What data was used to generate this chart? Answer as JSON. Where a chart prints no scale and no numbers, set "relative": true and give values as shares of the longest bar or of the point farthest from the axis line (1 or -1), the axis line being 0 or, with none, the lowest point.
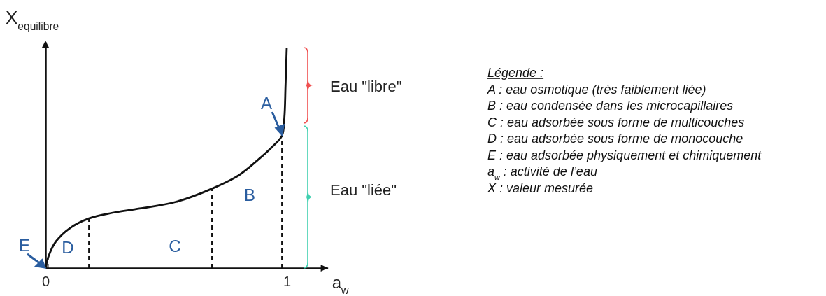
{
  "chart_data": {
    "type": "line",
    "relative": true,
    "xlabel": "a$_{w}$",
    "ylabel": "X$_{equilibre}$",
    "xlim": [
      0,
      1.17
    ],
    "xticks": [
      0,
      1
    ],
    "series": [
      {
        "color": "#111111",
        "line_style": "solid",
        "x": [
          0,
          0.014,
          0.043,
          0.1,
          0.18,
          0.275,
          0.39,
          0.54,
          0.69,
          0.8,
          0.88,
          0.94,
          0.98,
          0.99,
          0.995,
          1
        ],
        "values": [
          0,
          0.057,
          0.12,
          0.18,
          0.225,
          0.25,
          0.27,
          0.3,
          0.36,
          0.42,
          0.49,
          0.55,
          0.6,
          0.68,
          0.83,
          1
        ]
      },
      {
        "color": "#111111",
        "line_style": "dashed",
        "x": [
          0.01,
          0.01
        ],
        "values": [
          0,
          0.045
        ]
      },
      {
        "color": "#111111",
        "line_style": "dashed",
        "x": [
          0.18,
          0.18
        ],
        "values": [
          0,
          0.225
        ]
      },
      {
        "color": "#111111",
        "line_style": "dashed",
        "x": [
          0.69,
          0.69
        ],
        "values": [
          0,
          0.36
        ]
      },
      {
        "color": "#111111",
        "line_style": "dashed",
        "x": [
          0.98,
          0.98
        ],
        "values": [
          0,
          0.6
        ]
      }
    ],
    "annotations": [
      {
        "text": "E",
        "x": 0,
        "y": 0
      },
      {
        "text": "A",
        "x": 0.98,
        "y": 0.6
      },
      "D",
      "C",
      "B",
      "Eau \"libre\"",
      "Eau \"liée\"",
      "Légende :",
      "A : eau osmotique (très faiblement liée)",
      "B : eau condensée dans les microcapillaires",
      "C : eau adsorbée sous forme de multicouches",
      "D : eau adsorbée sous forme de monocouche",
      "E : eau adsorbée physiquement et chimiquement",
      "a$_{w}$ : activité de l’eau",
      "X : valeur mesurée"
    ]
  }
}
